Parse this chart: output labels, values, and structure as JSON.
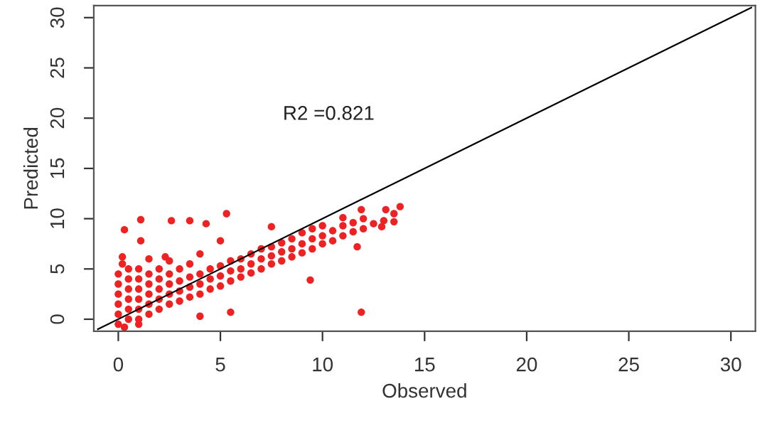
{
  "chart_data": {
    "type": "scatter",
    "xlabel": "Observed",
    "ylabel": "Predicted",
    "annotations": [
      "R2 =0.821"
    ],
    "xlim": [
      -1.2,
      31.2
    ],
    "ylim": [
      -1.2,
      31.2
    ],
    "xticks": [
      0,
      5,
      10,
      15,
      20,
      25,
      30
    ],
    "yticks": [
      0,
      5,
      10,
      15,
      20,
      25,
      30
    ],
    "grid": false,
    "legend": false,
    "series": [
      {
        "color": "#ee2222",
        "marker": "circle",
        "x": [
          0,
          0,
          0,
          0,
          0,
          0,
          0.2,
          0.3,
          0.5,
          0.5,
          0.5,
          0.5,
          0.5,
          0.5,
          1,
          1,
          1,
          1,
          1,
          1,
          1,
          1.5,
          1.5,
          1.5,
          1.5,
          1.5,
          1.5,
          2,
          2,
          2,
          2,
          2,
          2.5,
          2.5,
          2.5,
          2.5,
          2.5,
          3,
          3,
          3,
          3,
          3.5,
          3.5,
          3.5,
          3.5,
          4,
          4,
          4,
          4,
          4.5,
          4.5,
          4.5,
          5,
          5,
          5,
          5,
          5.5,
          5.5,
          5.5,
          6,
          6,
          6,
          6.5,
          6.5,
          6.5,
          7,
          7,
          7,
          7.5,
          7.5,
          7.5,
          8,
          8,
          8,
          8.5,
          8.5,
          8.5,
          9,
          9,
          9,
          9.5,
          9.5,
          9.5,
          10,
          10,
          10,
          10.5,
          10.5,
          11,
          11,
          11.5,
          11.5,
          12,
          12,
          12.5,
          13,
          13.5,
          0.3,
          1.1,
          2.6,
          3.5,
          4.3,
          5.3,
          7.5,
          1.1,
          0.2,
          2.3,
          5.5,
          11.9,
          9.4,
          11.7,
          13.8,
          13.1,
          13.5,
          12.9,
          11.9,
          11,
          4
        ],
        "values": [
          -0.5,
          0.5,
          1.5,
          2.5,
          3.5,
          4.5,
          5.5,
          -0.8,
          0,
          1,
          2,
          3,
          4,
          5,
          0,
          1,
          2,
          3,
          4,
          5,
          -0.5,
          0.5,
          1.5,
          2.5,
          3.5,
          4.5,
          6,
          1,
          2,
          3,
          4,
          5,
          1.5,
          2.5,
          3.5,
          4.5,
          5.8,
          1.8,
          2.8,
          3.8,
          5,
          2.2,
          3.2,
          4.2,
          5.5,
          2.5,
          3.5,
          4.5,
          6.5,
          3,
          4,
          5,
          3.3,
          4.3,
          5.3,
          7.8,
          3.8,
          4.8,
          5.8,
          4.2,
          5,
          6,
          4.6,
          5.5,
          6.5,
          5,
          6,
          7,
          5.5,
          6.3,
          7.2,
          5.8,
          6.7,
          7.6,
          6.2,
          7,
          8,
          6.6,
          7.5,
          8.6,
          7,
          8,
          9,
          7.5,
          8.3,
          9.3,
          7.8,
          8.8,
          8.3,
          9.3,
          8.7,
          9.6,
          9,
          10,
          9.5,
          9.8,
          10.5,
          8.9,
          9.9,
          9.8,
          9.8,
          9.5,
          10.5,
          9.2,
          7.8,
          6.2,
          6.2,
          0.7,
          0.7,
          3.9,
          7.2,
          11.2,
          10.9,
          9.7,
          9.2,
          10.9,
          10.1,
          0.3
        ]
      },
      {
        "type": "line",
        "color": "#000000",
        "marker": "none",
        "x": [
          -1,
          31
        ],
        "values": [
          -1,
          31
        ]
      }
    ]
  }
}
